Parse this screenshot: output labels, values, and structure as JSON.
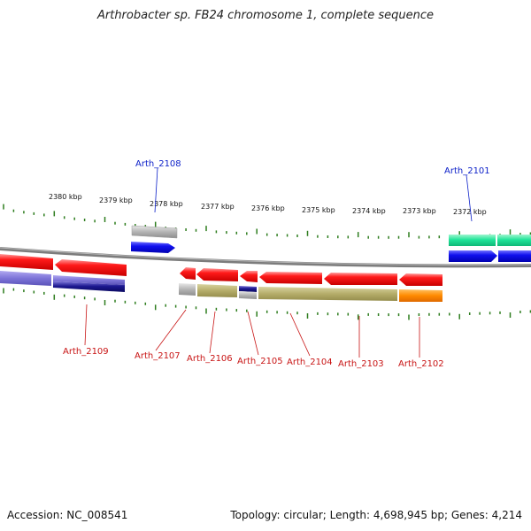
{
  "title": "Arthrobacter sp. FB24 chromosome 1, complete sequence",
  "accession": "Accession: NC_008541",
  "stats": "Topology: circular; Length: 4,698,945 bp; Genes: 4,214",
  "colors": {
    "backbone": "#888888",
    "tick": "#2e7d1e",
    "forward_label": "#0a1ec8",
    "reverse_label": "#c81414"
  },
  "kbp_labels": [
    "2380 kbp",
    "2379 kbp",
    "2378 kbp",
    "2377 kbp",
    "2376 kbp",
    "2375 kbp",
    "2374 kbp",
    "2373 kbp",
    "2372 kbp"
  ],
  "gene_labels": {
    "top": [
      "Arth_2108",
      "Arth_2101"
    ],
    "bottom": [
      "Arth_2109",
      "Arth_2107",
      "Arth_2106",
      "Arth_2105",
      "Arth_2104",
      "Arth_2103",
      "Arth_2102"
    ]
  }
}
